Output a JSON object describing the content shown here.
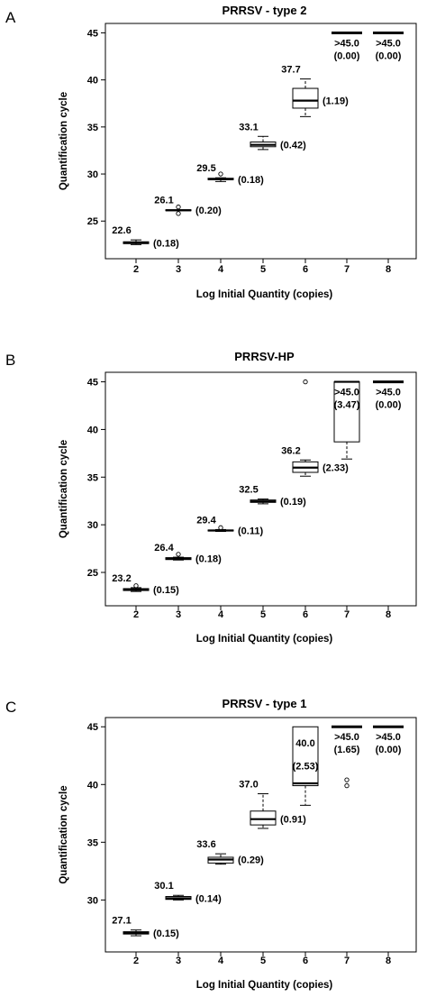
{
  "chart_data": [
    {
      "type": "boxplot",
      "panel_label": "A",
      "title": "PRRSV - type 2",
      "xlabel": "Log Initial Quantity (copies)",
      "ylabel": "Quantification cycle",
      "categories": [
        "2",
        "3",
        "4",
        "5",
        "6",
        "7",
        "8"
      ],
      "ylim": [
        21,
        46
      ],
      "yticks": [
        25,
        30,
        35,
        40,
        45
      ],
      "boxes": [
        {
          "x": "2",
          "whisker_low": 22.5,
          "q1": 22.6,
          "median": 22.7,
          "q3": 22.8,
          "whisker_high": 23.0,
          "outliers": [],
          "mean_label": "22.6",
          "sd_label": "(0.18)"
        },
        {
          "x": "3",
          "whisker_low": 26.1,
          "q1": 26.1,
          "median": 26.15,
          "q3": 26.2,
          "whisker_high": 26.2,
          "outliers": [
            26.5,
            25.8
          ],
          "mean_label": "26.1",
          "sd_label": "(0.20)"
        },
        {
          "x": "4",
          "whisker_low": 29.2,
          "q1": 29.4,
          "median": 29.45,
          "q3": 29.55,
          "whisker_high": 29.6,
          "outliers": [
            30.0
          ],
          "mean_label": "29.5",
          "sd_label": "(0.18)"
        },
        {
          "x": "5",
          "whisker_low": 32.6,
          "q1": 32.9,
          "median": 33.1,
          "q3": 33.4,
          "whisker_high": 34.0,
          "outliers": [],
          "mean_label": "33.1",
          "sd_label": "(0.42)"
        },
        {
          "x": "6",
          "whisker_low": 36.1,
          "q1": 37.0,
          "median": 37.8,
          "q3": 39.1,
          "whisker_high": 40.1,
          "outliers": [],
          "mean_label": "37.7",
          "sd_label": "(1.19)"
        },
        {
          "x": "7",
          "whisker_low": 45.0,
          "q1": 45.0,
          "median": 45.0,
          "q3": 45.0,
          "whisker_high": 45.0,
          "outliers": [],
          "mean_label": ">45.0",
          "sd_label": "(0.00)"
        },
        {
          "x": "8",
          "whisker_low": 45.0,
          "q1": 45.0,
          "median": 45.0,
          "q3": 45.0,
          "whisker_high": 45.0,
          "outliers": [],
          "mean_label": ">45.0",
          "sd_label": "(0.00)"
        }
      ]
    },
    {
      "type": "boxplot",
      "panel_label": "B",
      "title": "PRRSV-HP",
      "xlabel": "Log Initial Quantity (copies)",
      "ylabel": "Quantification cycle",
      "categories": [
        "2",
        "3",
        "4",
        "5",
        "6",
        "7",
        "8"
      ],
      "ylim": [
        21.5,
        46
      ],
      "yticks": [
        25,
        30,
        35,
        40,
        45
      ],
      "boxes": [
        {
          "x": "2",
          "whisker_low": 23.0,
          "q1": 23.1,
          "median": 23.2,
          "q3": 23.3,
          "whisker_high": 23.4,
          "outliers": [
            23.6
          ],
          "mean_label": "23.2",
          "sd_label": "(0.15)"
        },
        {
          "x": "3",
          "whisker_low": 26.3,
          "q1": 26.35,
          "median": 26.45,
          "q3": 26.55,
          "whisker_high": 26.6,
          "outliers": [
            26.9
          ],
          "mean_label": "26.4",
          "sd_label": "(0.18)"
        },
        {
          "x": "4",
          "whisker_low": 29.3,
          "q1": 29.35,
          "median": 29.4,
          "q3": 29.45,
          "whisker_high": 29.5,
          "outliers": [
            29.7
          ],
          "mean_label": "29.4",
          "sd_label": "(0.11)"
        },
        {
          "x": "5",
          "whisker_low": 32.2,
          "q1": 32.35,
          "median": 32.45,
          "q3": 32.6,
          "whisker_high": 32.7,
          "outliers": [],
          "mean_label": "32.5",
          "sd_label": "(0.19)"
        },
        {
          "x": "6",
          "whisker_low": 35.1,
          "q1": 35.5,
          "median": 36.0,
          "q3": 36.6,
          "whisker_high": 36.8,
          "outliers": [
            45.0
          ],
          "mean_label": "36.2",
          "sd_label": "(2.33)"
        },
        {
          "x": "7",
          "whisker_low": 36.9,
          "q1": 38.7,
          "median": 45.0,
          "q3": 45.0,
          "whisker_high": 45.0,
          "outliers": [],
          "mean_label": ">45.0",
          "sd_label": "(3.47)"
        },
        {
          "x": "8",
          "whisker_low": 45.0,
          "q1": 45.0,
          "median": 45.0,
          "q3": 45.0,
          "whisker_high": 45.0,
          "outliers": [],
          "mean_label": ">45.0",
          "sd_label": "(0.00)"
        }
      ]
    },
    {
      "type": "boxplot",
      "panel_label": "C",
      "title": "PRRSV - type 1",
      "xlabel": "Log Initial Quantity (copies)",
      "ylabel": "Quantification cycle",
      "categories": [
        "2",
        "3",
        "4",
        "5",
        "6",
        "7",
        "8"
      ],
      "ylim": [
        25.5,
        45.8
      ],
      "yticks": [
        30,
        35,
        40,
        45
      ],
      "boxes": [
        {
          "x": "2",
          "whisker_low": 26.9,
          "q1": 27.05,
          "median": 27.15,
          "q3": 27.25,
          "whisker_high": 27.4,
          "outliers": [],
          "mean_label": "27.1",
          "sd_label": "(0.15)"
        },
        {
          "x": "3",
          "whisker_low": 30.0,
          "q1": 30.05,
          "median": 30.15,
          "q3": 30.3,
          "whisker_high": 30.4,
          "outliers": [],
          "mean_label": "30.1",
          "sd_label": "(0.14)"
        },
        {
          "x": "4",
          "whisker_low": 33.1,
          "q1": 33.2,
          "median": 33.5,
          "q3": 33.7,
          "whisker_high": 34.0,
          "outliers": [],
          "mean_label": "33.6",
          "sd_label": "(0.29)"
        },
        {
          "x": "5",
          "whisker_low": 36.2,
          "q1": 36.5,
          "median": 37.0,
          "q3": 37.7,
          "whisker_high": 39.2,
          "outliers": [],
          "mean_label": "37.0",
          "sd_label": "(0.91)"
        },
        {
          "x": "6",
          "whisker_low": 38.2,
          "q1": 39.9,
          "median": 40.1,
          "q3": 45.0,
          "whisker_high": 45.0,
          "outliers": [],
          "mean_label": "40.0",
          "sd_label": "(2.53)"
        },
        {
          "x": "7",
          "whisker_low": 45.0,
          "q1": 45.0,
          "median": 45.0,
          "q3": 45.0,
          "whisker_high": 45.0,
          "outliers": [
            40.4,
            39.9
          ],
          "mean_label": ">45.0",
          "sd_label": "(1.65)"
        },
        {
          "x": "8",
          "whisker_low": 45.0,
          "q1": 45.0,
          "median": 45.0,
          "q3": 45.0,
          "whisker_high": 45.0,
          "outliers": [],
          "mean_label": ">45.0",
          "sd_label": "(0.00)"
        }
      ]
    }
  ]
}
